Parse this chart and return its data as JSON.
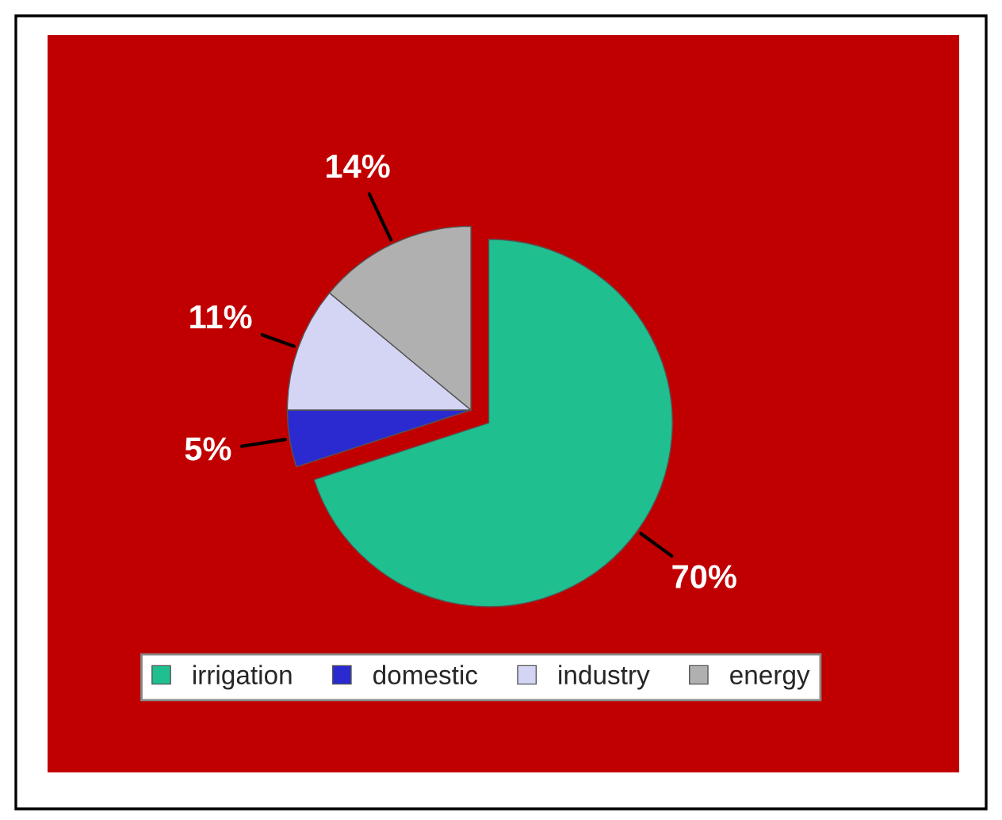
{
  "chart_data": {
    "type": "pie",
    "categories": [
      "irrigation",
      "domestic",
      "industry",
      "energy"
    ],
    "values": [
      70,
      5,
      11,
      14
    ],
    "colors": [
      "#1fbf8f",
      "#2a2ad0",
      "#d4d4f4",
      "#b0b0b0"
    ],
    "value_labels": [
      "70%",
      "5%",
      "11%",
      "14%"
    ],
    "legend": "bottom"
  }
}
